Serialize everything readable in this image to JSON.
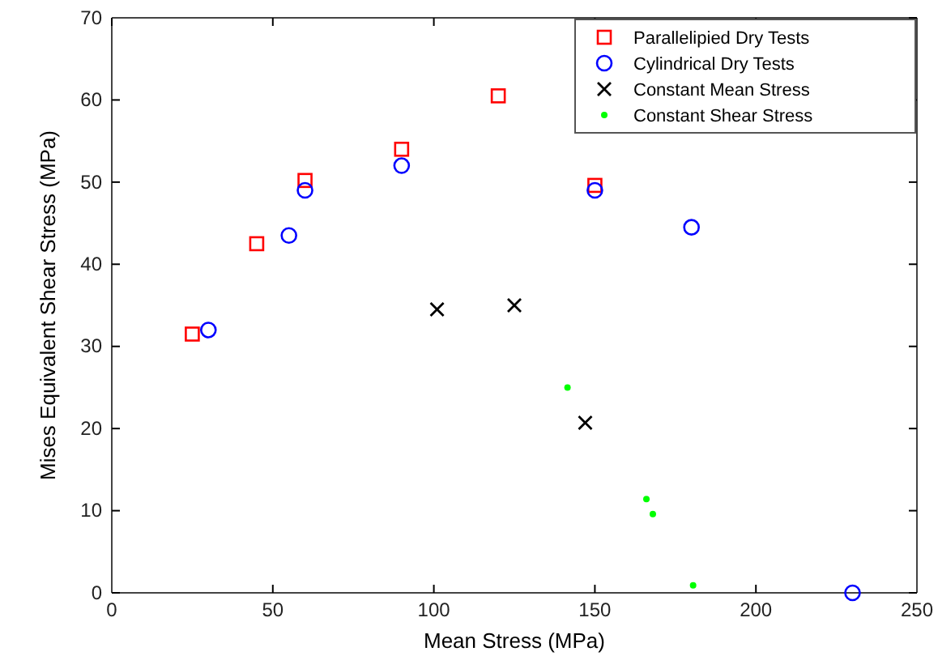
{
  "chart_data": {
    "type": "scatter",
    "xlabel": "Mean Stress (MPa)",
    "ylabel": "Mises Equivalent Shear Stress (MPa)",
    "xlim": [
      0,
      250
    ],
    "ylim": [
      0,
      70
    ],
    "xticks": [
      0,
      50,
      100,
      150,
      200,
      250
    ],
    "yticks": [
      0,
      10,
      20,
      30,
      40,
      50,
      60,
      70
    ],
    "grid": false,
    "legend": "top right",
    "series": [
      {
        "name": "Parallelipied Dry Tests",
        "color": "#ff0000",
        "marker": "square",
        "x": [
          25,
          45,
          60,
          90,
          120,
          150
        ],
        "values": [
          31.5,
          42.5,
          50.2,
          54,
          60.5,
          49.6
        ]
      },
      {
        "name": "Cylindrical Dry Tests",
        "color": "#0000ff",
        "marker": "circle",
        "x": [
          30,
          55,
          60,
          90,
          150,
          180,
          230
        ],
        "values": [
          32,
          43.5,
          49,
          52,
          49,
          44.5,
          0
        ]
      },
      {
        "name": "Constant Mean Stress",
        "color": "#000000",
        "marker": "cross",
        "x": [
          101,
          125,
          147
        ],
        "values": [
          34.5,
          35,
          20.7
        ]
      },
      {
        "name": "Constant Shear Stress",
        "color": "#00ff00",
        "marker": "point",
        "x": [
          141.5,
          166,
          168,
          180.5
        ],
        "values": [
          25,
          11.4,
          9.6,
          0.9
        ]
      }
    ]
  }
}
